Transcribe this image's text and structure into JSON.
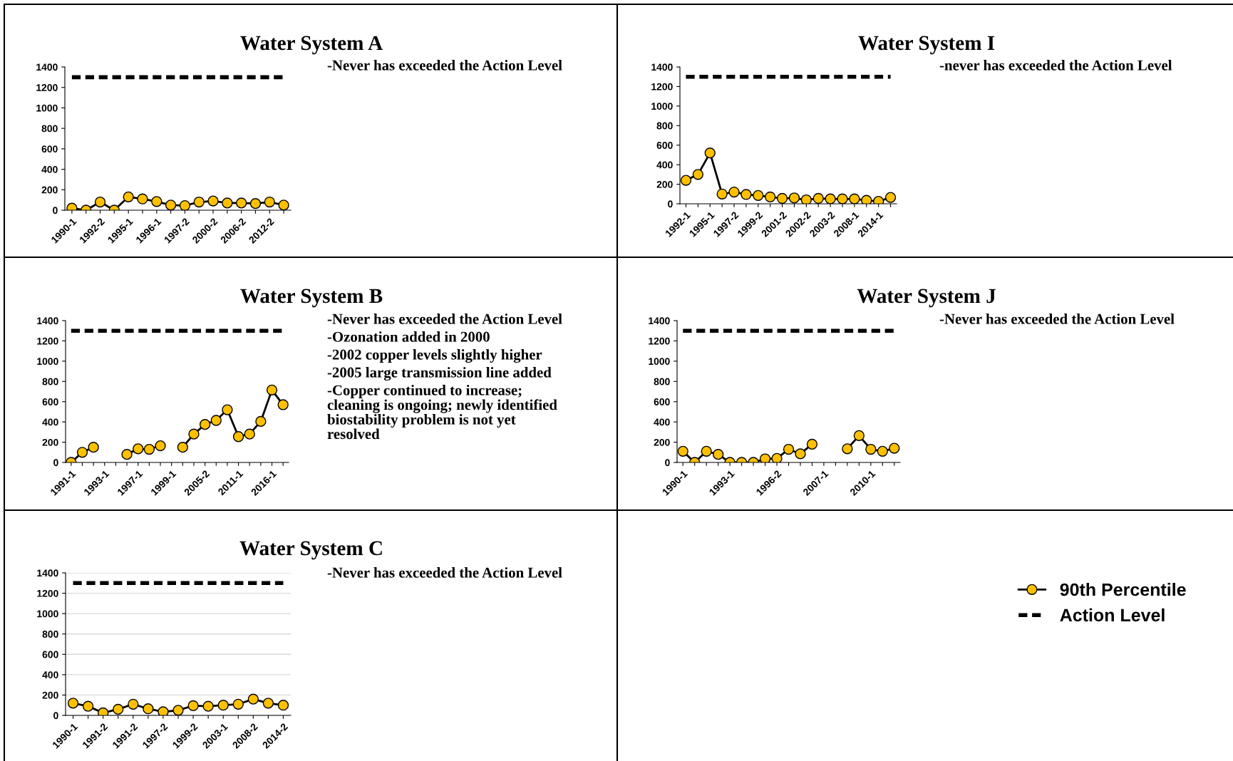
{
  "chart_data": [
    {
      "type": "line",
      "title": "Water System A",
      "annotations": [
        "-Never has exceeded the Action Level"
      ],
      "categories": [
        "1990-1",
        null,
        "1992-2",
        null,
        "1995-1",
        null,
        "1996-1",
        null,
        "1997-2",
        null,
        "2000-2",
        null,
        "2006-2",
        null,
        "2012-2",
        null
      ],
      "series": [
        {
          "color": "#ffc000",
          "marker": "circle",
          "values": [
            20,
            0,
            80,
            0,
            130,
            110,
            85,
            50,
            45,
            80,
            90,
            70,
            70,
            65,
            80,
            50
          ]
        },
        {
          "color": "#000000",
          "marker": "none",
          "line_style": "dashed",
          "values": [
            1300,
            1300,
            1300,
            1300,
            1300,
            1300,
            1300,
            1300,
            1300,
            1300,
            1300,
            1300,
            1300,
            1300,
            1300,
            1300
          ]
        }
      ],
      "ylim": [
        0,
        1400
      ],
      "yticks": [
        0,
        200,
        400,
        600,
        800,
        1000,
        1200,
        1400
      ],
      "grid": false
    },
    {
      "type": "line",
      "title": "Water System I",
      "annotations": [
        "-never has exceeded the Action Level"
      ],
      "categories": [
        "1992-1",
        null,
        "1995-1",
        null,
        "1997-2",
        null,
        "1999-2",
        null,
        "2001-2",
        null,
        "2002-2",
        null,
        "2003-2",
        null,
        "2008-1",
        null,
        "2014-1",
        null
      ],
      "series": [
        {
          "color": "#ffc000",
          "marker": "circle",
          "values": [
            240,
            300,
            520,
            100,
            120,
            95,
            85,
            70,
            55,
            60,
            40,
            55,
            50,
            50,
            50,
            35,
            25,
            65
          ]
        },
        {
          "color": "#000000",
          "marker": "none",
          "line_style": "dashed",
          "values": [
            1300,
            1300,
            1300,
            1300,
            1300,
            1300,
            1300,
            1300,
            1300,
            1300,
            1300,
            1300,
            1300,
            1300,
            1300,
            1300,
            1300,
            1300
          ]
        }
      ],
      "ylim": [
        0,
        1400
      ],
      "yticks": [
        0,
        200,
        400,
        600,
        800,
        1000,
        1200,
        1400
      ],
      "grid": false
    },
    {
      "type": "line",
      "title": "Water System B",
      "annotations": [
        "-Never has exceeded the Action Level",
        "-Ozonation added in 2000",
        "-2002 copper levels slightly higher",
        "-2005 large transmission line added",
        "-Copper continued to increase;\ncleaning is ongoing; newly identified\nbiostability problem is not yet\nresolved"
      ],
      "categories": [
        "1991-1",
        null,
        null,
        "1993-1",
        null,
        null,
        "1997-1",
        null,
        null,
        "1999-1",
        null,
        null,
        "2005-2",
        null,
        null,
        "2011-1",
        null,
        null,
        "2016-1",
        null
      ],
      "series": [
        {
          "color": "#ffc000",
          "marker": "circle",
          "values": [
            0,
            100,
            150,
            null,
            null,
            80,
            135,
            130,
            165,
            null,
            150,
            280,
            375,
            415,
            520,
            255,
            280,
            405,
            715,
            570
          ]
        },
        {
          "color": "#000000",
          "marker": "none",
          "line_style": "dashed",
          "values": [
            1300,
            1300,
            1300,
            1300,
            1300,
            1300,
            1300,
            1300,
            1300,
            1300,
            1300,
            1300,
            1300,
            1300,
            1300,
            1300,
            1300,
            1300,
            1300,
            1300
          ]
        }
      ],
      "ylim": [
        0,
        1400
      ],
      "yticks": [
        0,
        200,
        400,
        600,
        800,
        1000,
        1200,
        1400
      ],
      "grid": false
    },
    {
      "type": "line",
      "title": "Water System J",
      "annotations": [
        "-Never has exceeded the Action Level"
      ],
      "categories": [
        "1990-1",
        null,
        null,
        null,
        "1993-1",
        null,
        null,
        null,
        "1996-2",
        null,
        null,
        null,
        "2007-1",
        null,
        null,
        null,
        "2010-1",
        null,
        null
      ],
      "series": [
        {
          "color": "#ffc000",
          "marker": "circle",
          "values": [
            110,
            0,
            110,
            80,
            0,
            0,
            0,
            35,
            40,
            130,
            85,
            180,
            null,
            null,
            135,
            265,
            130,
            110,
            140
          ]
        },
        {
          "color": "#000000",
          "marker": "none",
          "line_style": "dashed",
          "values": [
            1300,
            1300,
            1300,
            1300,
            1300,
            1300,
            1300,
            1300,
            1300,
            1300,
            1300,
            1300,
            1300,
            1300,
            1300,
            1300,
            1300,
            1300,
            1300
          ]
        }
      ],
      "ylim": [
        0,
        1400
      ],
      "yticks": [
        0,
        200,
        400,
        600,
        800,
        1000,
        1200,
        1400
      ],
      "grid": false
    },
    {
      "type": "line",
      "title": "Water System C",
      "annotations": [
        "-Never has exceeded the Action Level"
      ],
      "categories": [
        "1990-1",
        null,
        "1991-2",
        null,
        "1991-2",
        null,
        "1997-2",
        null,
        "1999-2",
        null,
        "2003-1",
        null,
        "2008-2",
        null,
        "2014-2"
      ],
      "series": [
        {
          "name": "90th Percentile",
          "color": "#ffc000",
          "marker": "circle",
          "values": [
            120,
            90,
            25,
            60,
            110,
            65,
            35,
            50,
            95,
            90,
            100,
            110,
            160,
            120,
            100
          ]
        },
        {
          "name": "Action Level",
          "color": "#000000",
          "marker": "none",
          "line_style": "dashed",
          "values": [
            1300,
            1300,
            1300,
            1300,
            1300,
            1300,
            1300,
            1300,
            1300,
            1300,
            1300,
            1300,
            1300,
            1300,
            1300
          ]
        }
      ],
      "ylim": [
        0,
        1400
      ],
      "yticks": [
        0,
        200,
        400,
        600,
        800,
        1000,
        1200,
        1400
      ],
      "grid": "y",
      "legend": "right"
    }
  ]
}
